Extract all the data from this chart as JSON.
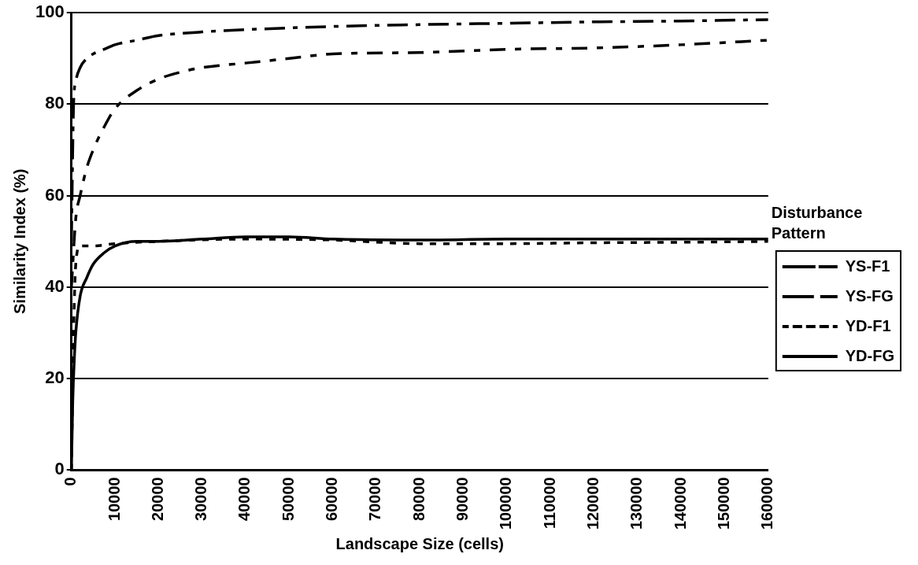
{
  "chart_data": {
    "type": "line",
    "xlabel": "Landscape Size (cells)",
    "ylabel": "Similarity Index (%)",
    "legend_title": "Disturbance Pattern",
    "legend": "right",
    "grid": "y",
    "marker": "none",
    "xlim": [
      0,
      160000
    ],
    "xticks": [
      0,
      10000,
      20000,
      30000,
      40000,
      50000,
      60000,
      70000,
      80000,
      90000,
      100000,
      110000,
      120000,
      130000,
      140000,
      150000,
      160000
    ],
    "ylim": [
      0,
      100
    ],
    "yticks": [
      0,
      20,
      40,
      60,
      80,
      100
    ],
    "series": [
      {
        "name": "YS-F1",
        "color": "#000000",
        "line_style": "dashed",
        "x": [
          0,
          500,
          1000,
          2000,
          3500,
          5000,
          7500,
          10000,
          15000,
          20000,
          30000,
          40000,
          60000,
          80000,
          100000,
          120000,
          140000,
          160000
        ],
        "values": [
          50,
          80,
          85,
          88,
          90,
          91,
          92,
          93,
          94,
          95,
          95.8,
          96.3,
          97,
          97.4,
          97.7,
          98,
          98.2,
          98.5
        ]
      },
      {
        "name": "YS-FG",
        "color": "#000000",
        "line_style": "dashed",
        "x": [
          0,
          1000,
          2000,
          3500,
          5000,
          7500,
          10000,
          15000,
          20000,
          25000,
          30000,
          40000,
          50000,
          60000,
          80000,
          100000,
          120000,
          140000,
          160000
        ],
        "values": [
          40,
          55,
          60,
          66,
          70,
          75,
          79,
          83,
          85.5,
          87,
          88,
          89,
          90,
          91,
          91.3,
          92,
          92.3,
          93,
          94
        ]
      },
      {
        "name": "YD-F1",
        "color": "#000000",
        "line_style": "dotted",
        "x": [
          0,
          500,
          1000,
          2000,
          5000,
          10000,
          20000,
          40000,
          60000,
          80000,
          100000,
          120000,
          140000,
          160000
        ],
        "values": [
          0,
          30,
          45,
          49,
          49,
          49.5,
          50,
          50.5,
          50.3,
          49.5,
          49.5,
          49.7,
          49.8,
          50
        ]
      },
      {
        "name": "YD-FG",
        "color": "#000000",
        "line_style": "solid",
        "x": [
          0,
          300,
          700,
          1000,
          2000,
          3500,
          5000,
          7500,
          10000,
          15000,
          20000,
          30000,
          40000,
          50000,
          60000,
          80000,
          100000,
          120000,
          140000,
          160000
        ],
        "values": [
          0,
          15,
          25,
          30,
          38,
          42,
          45,
          47.5,
          49,
          50,
          50,
          50.5,
          51,
          51,
          50.5,
          50.3,
          50.5,
          50.5,
          50.5,
          50.5
        ]
      }
    ]
  }
}
